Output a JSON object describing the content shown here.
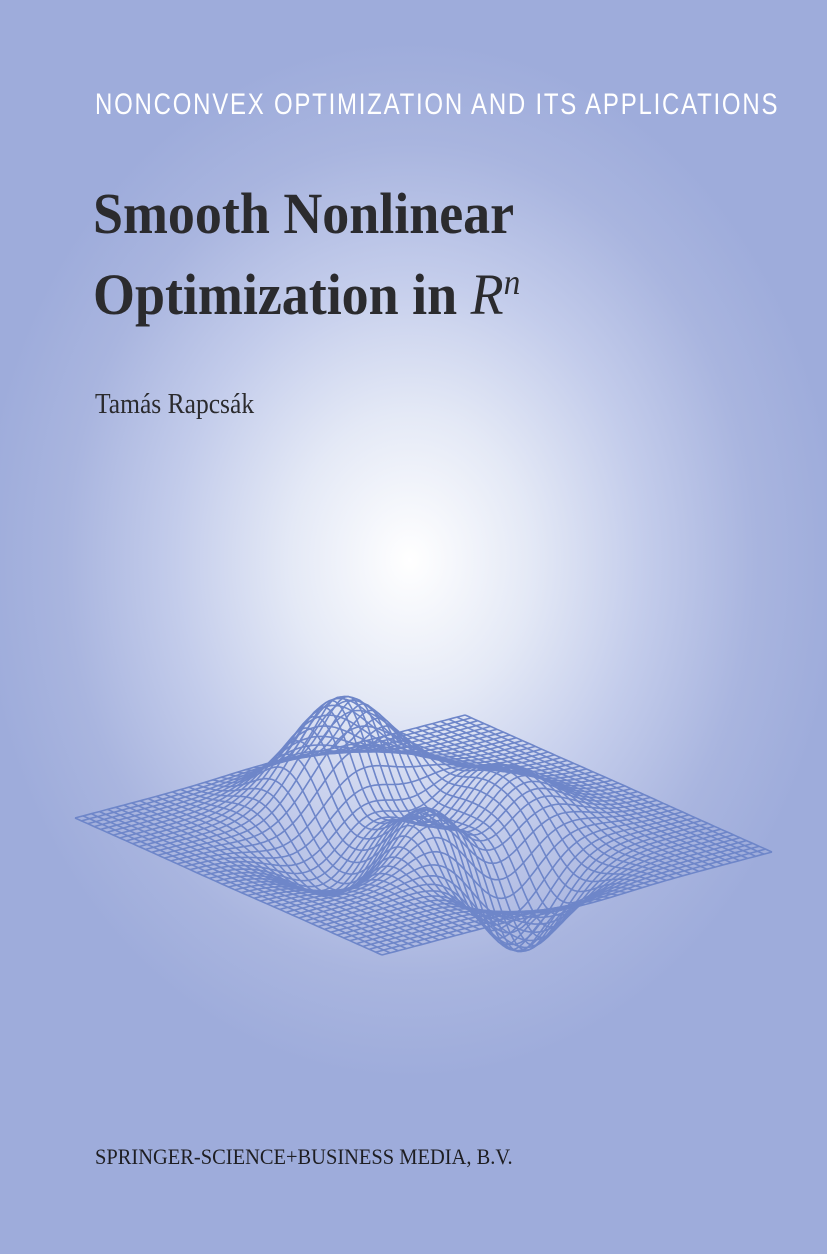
{
  "cover": {
    "series": "NONCONVEX OPTIMIZATION AND ITS APPLICATIONS",
    "title_line1": "Smooth Nonlinear",
    "title_line2": "Optimization in",
    "title_symbol": "R",
    "title_superscript": "n",
    "author": "Tamás Rapcsák",
    "publisher": "SPRINGER-SCIENCE+BUSINESS MEDIA, B.V.",
    "illustration": "wireframe-surface-plot",
    "colors": {
      "mesh": "#6e86c9",
      "title_text": "#2b2b2e",
      "series_text": "#ffffff",
      "background_edge": "#9eacdb",
      "background_center": "#ffffff"
    }
  }
}
